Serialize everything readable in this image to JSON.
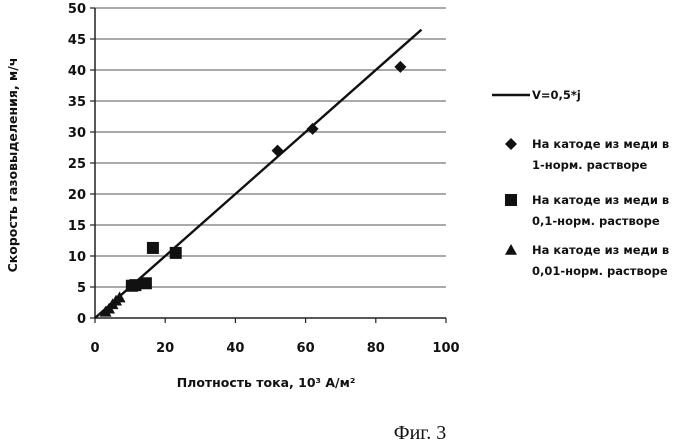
{
  "caption": "Фиг. 3",
  "chart_data": {
    "type": "scatter",
    "xlabel": "Плотность тока, 10³ А/м²",
    "ylabel": "Скорость газовыделения, м/ч",
    "xlim": [
      0,
      100
    ],
    "ylim": [
      0,
      50
    ],
    "xticks": [
      "0",
      "20",
      "40",
      "60",
      "80",
      "100"
    ],
    "yticks": [
      "0",
      "5",
      "10",
      "15",
      "20",
      "25",
      "30",
      "35",
      "40",
      "45",
      "50"
    ],
    "grid": "horizontal",
    "legend_position": "right",
    "line": {
      "name": "V=0,5*j",
      "x": [
        0,
        93
      ],
      "y": [
        0,
        46.5
      ]
    },
    "series": [
      {
        "name": [
          "На катоде из меди в",
          "1-норм. растворе"
        ],
        "marker": "diamond",
        "x": [
          52,
          62,
          87
        ],
        "y": [
          27,
          30.5,
          40.5
        ]
      },
      {
        "name": [
          "На катоде из меди в",
          "0,1-норм. растворе"
        ],
        "marker": "square",
        "x": [
          10.5,
          11.5,
          14.5,
          16.5,
          23
        ],
        "y": [
          5.2,
          5.3,
          5.6,
          11.3,
          10.5
        ]
      },
      {
        "name": [
          "На катоде из меди в",
          "0,01-норм. растворе"
        ],
        "marker": "triangle",
        "x": [
          3,
          4,
          5,
          6,
          7
        ],
        "y": [
          1,
          1.5,
          2.2,
          2.8,
          3.3
        ]
      }
    ]
  }
}
